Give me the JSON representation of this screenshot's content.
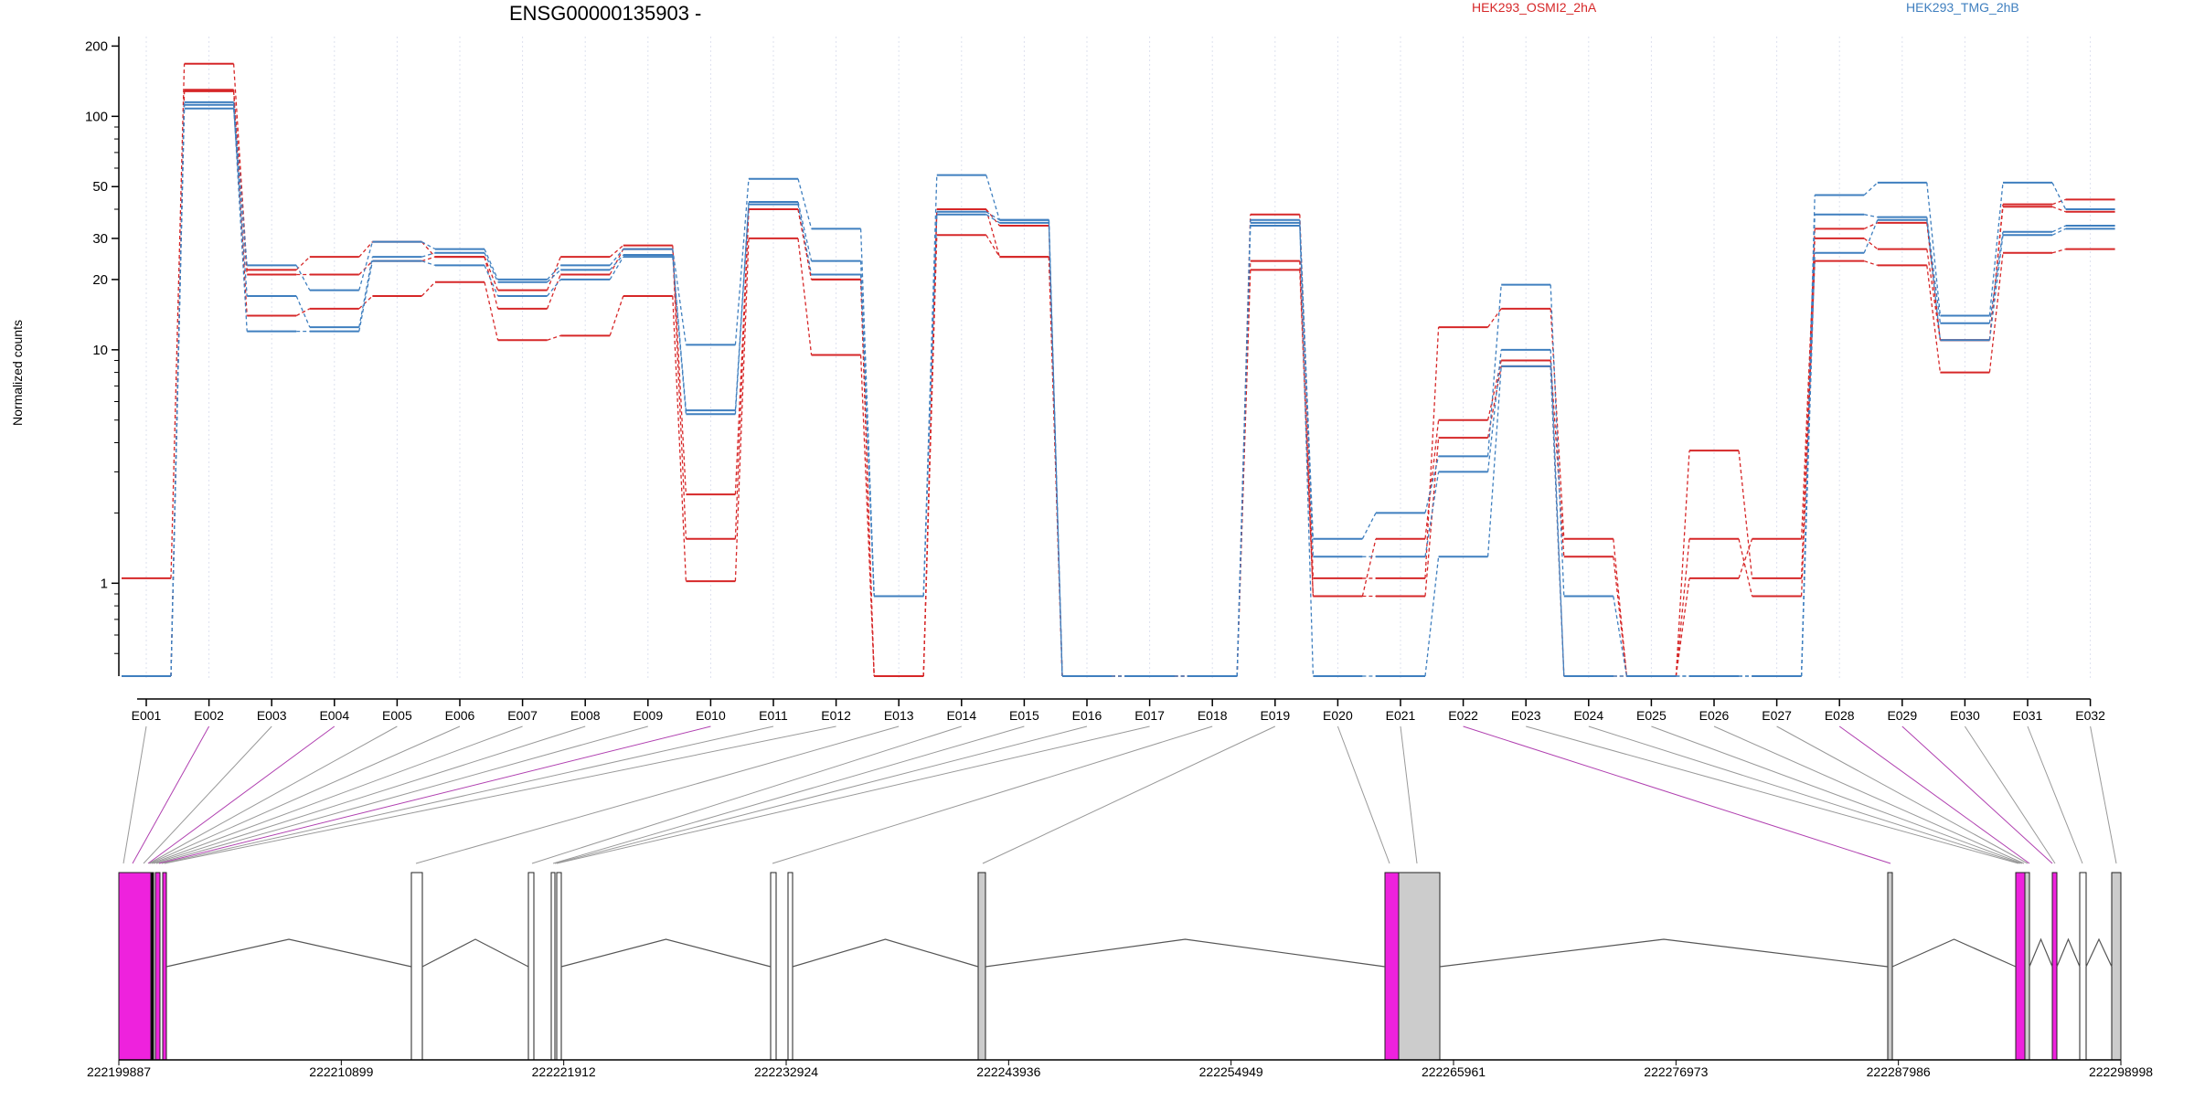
{
  "chart_data": {
    "type": "line",
    "title": "ENSG00000135903 -",
    "ylabel": "Normalized counts",
    "xlabel": "",
    "yscale": "log",
    "ylim": [
      0.4,
      210
    ],
    "yticks": [
      1,
      10,
      20,
      30,
      50,
      100,
      200
    ],
    "grid": "vertical dotted lines at each exon",
    "legend_placement": "top",
    "colors": {
      "groupA": "#d62728",
      "groupB": "#3f7fbf",
      "exon_highlight": "#ee22dd",
      "exon_gray": "#cccccc"
    },
    "categories": [
      "E001",
      "E002",
      "E003",
      "E004",
      "E005",
      "E006",
      "E007",
      "E008",
      "E009",
      "E010",
      "E011",
      "E012",
      "E013",
      "E014",
      "E015",
      "E016",
      "E017",
      "E018",
      "E019",
      "E020",
      "E021",
      "E022",
      "E023",
      "E024",
      "E025",
      "E026",
      "E027",
      "E028",
      "E029",
      "E030",
      "E031",
      "E032"
    ],
    "legend": [
      {
        "name": "HEK293_OSMI2_2hA",
        "color": "#d62728"
      },
      {
        "name": "HEK293_TMG_2hB",
        "color": "#3f7fbf"
      }
    ],
    "series": [
      {
        "group": "HEK293_OSMI2_2hA",
        "values": [
          1.05,
          168,
          22,
          25,
          29,
          25,
          18,
          25,
          28,
          2.4,
          40,
          20,
          0.4,
          40,
          34,
          0.4,
          0.4,
          0.4,
          38,
          1.05,
          1.05,
          12.5,
          15,
          1.55,
          0.4,
          3.7,
          1.05,
          33,
          35,
          11,
          42,
          44
        ]
      },
      {
        "group": "HEK293_OSMI2_2hA",
        "values": [
          0.4,
          130,
          21,
          21,
          24,
          25,
          15,
          21,
          27,
          1.55,
          40,
          20,
          0.4,
          40,
          25,
          0.4,
          0.4,
          0.4,
          24,
          0.88,
          1.55,
          5,
          9,
          1.3,
          0.4,
          1.05,
          1.55,
          30,
          27,
          11,
          41,
          39
        ]
      },
      {
        "group": "HEK293_OSMI2_2hA",
        "values": [
          0.4,
          128,
          14,
          15,
          17,
          19.5,
          11,
          11.5,
          17,
          1.02,
          30,
          9.5,
          0.4,
          31,
          25,
          0.4,
          0.4,
          0.4,
          22,
          0.88,
          0.88,
          4.2,
          8.5,
          0.4,
          0.4,
          1.55,
          0.88,
          24,
          23,
          8,
          26,
          27
        ]
      },
      {
        "group": "HEK293_TMG_2hB",
        "values": [
          0.4,
          115,
          23,
          18,
          29,
          27,
          20,
          23,
          27,
          10.5,
          54,
          33,
          0.88,
          56,
          36,
          0.4,
          0.4,
          0.4,
          36,
          1.55,
          2,
          3.5,
          19,
          0.88,
          0.4,
          0.4,
          0.4,
          46,
          52,
          14,
          52,
          40
        ]
      },
      {
        "group": "HEK293_TMG_2hB",
        "values": [
          0.4,
          108,
          17,
          12.5,
          25,
          26,
          19.5,
          22,
          25.5,
          5.5,
          43,
          24,
          0.88,
          39,
          36,
          0.4,
          0.4,
          0.4,
          34,
          1.3,
          1.3,
          3,
          10,
          0.4,
          0.4,
          0.4,
          0.4,
          38,
          37,
          13,
          32,
          34
        ]
      },
      {
        "group": "HEK293_TMG_2hB",
        "values": [
          0.4,
          112,
          12,
          12,
          24,
          23,
          17,
          20,
          25,
          5.3,
          42,
          21,
          0.88,
          38,
          35,
          0.4,
          0.4,
          0.4,
          35,
          0.4,
          0.4,
          1.3,
          8.5,
          0.4,
          0.4,
          0.4,
          0.4,
          26,
          36,
          11,
          31,
          33
        ]
      }
    ],
    "gene_model": {
      "coordinate_labels": [
        "222199887",
        "222210899",
        "222221912",
        "222232924",
        "222243936",
        "222254949",
        "222265961",
        "222276973",
        "222287986",
        "222298998"
      ],
      "exons_highlighted": [
        "E002",
        "E004",
        "E010",
        "E022",
        "E028",
        "E029"
      ]
    }
  }
}
